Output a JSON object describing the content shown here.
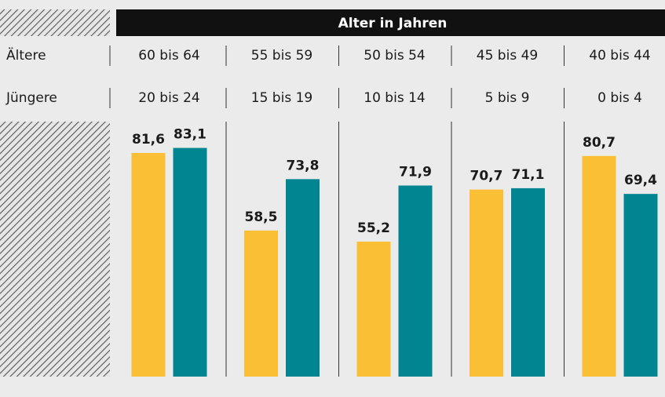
{
  "chart_data": {
    "type": "bar",
    "header": "Alter in Jahren",
    "series": [
      {
        "name": "Ältere",
        "color": "#fbbf35",
        "categories": [
          "60 bis 64",
          "55 bis 59",
          "50 bis 54",
          "45 bis 49",
          "40 bis 44"
        ],
        "values": [
          81.6,
          58.5,
          55.2,
          70.7,
          80.7
        ],
        "value_labels": [
          "81,6",
          "58,5",
          "55,2",
          "70,7",
          "80,7"
        ]
      },
      {
        "name": "Jüngere",
        "color": "#008591",
        "categories": [
          "20 bis 24",
          "15 bis 19",
          "10 bis 14",
          "5 bis 9",
          "0 bis 4"
        ],
        "values": [
          83.1,
          73.8,
          71.9,
          71.1,
          69.4
        ],
        "value_labels": [
          "83,1",
          "73,8",
          "71,9",
          "71,1",
          "69,4"
        ]
      }
    ],
    "ylim": [
      15,
      90
    ]
  }
}
